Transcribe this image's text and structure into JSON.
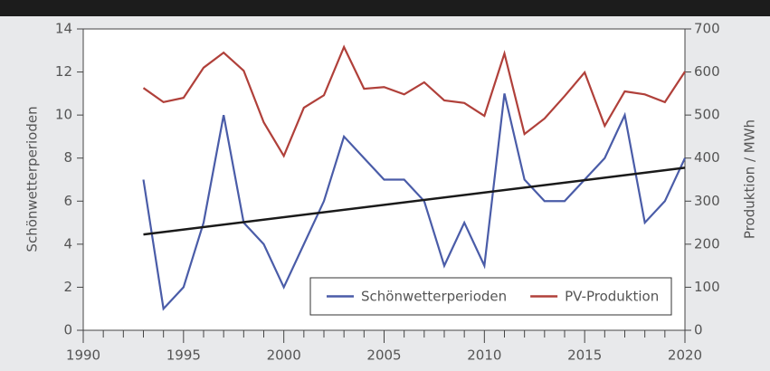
{
  "chart_data": {
    "type": "line",
    "x": [
      1993,
      1994,
      1995,
      1996,
      1997,
      1998,
      1999,
      2000,
      2001,
      2002,
      2003,
      2004,
      2005,
      2006,
      2007,
      2008,
      2009,
      2010,
      2011,
      2012,
      2013,
      2014,
      2015,
      2016,
      2017,
      2018,
      2019,
      2020
    ],
    "series": [
      {
        "name": "Schönwetterperioden",
        "color": "#4a5ca8",
        "values": [
          7,
          1,
          2,
          5,
          10,
          5,
          4,
          2,
          4,
          6,
          9,
          8,
          7,
          7,
          6,
          3,
          5,
          3,
          11,
          7,
          6,
          6,
          7,
          8,
          10,
          5,
          6,
          8
        ]
      },
      {
        "name": "PV-Produktion",
        "color": "#b0403a",
        "axis": "y2",
        "values": [
          563,
          530,
          540,
          610,
          645,
          603,
          483,
          405,
          517,
          546,
          658,
          561,
          565,
          548,
          576,
          534,
          528,
          498,
          643,
          456,
          492,
          544,
          599,
          475,
          555,
          548,
          530,
          601
        ]
      }
    ],
    "trend": {
      "x": [
        1993,
        2020
      ],
      "values": [
        4.45,
        7.55
      ],
      "color": "#1a1a1a"
    },
    "ylabel": "Schönwetterperioden",
    "y2label": "Produktion / MWh",
    "xlim": [
      1990,
      2020
    ],
    "xticks": [
      1990,
      1995,
      2000,
      2005,
      2010,
      2015,
      2020
    ],
    "xminorticks": [
      1991,
      1992,
      1993,
      1994,
      1996,
      1997,
      1998,
      1999,
      2001,
      2002,
      2003,
      2004,
      2006,
      2007,
      2008,
      2009,
      2011,
      2012,
      2013,
      2014,
      2016,
      2017,
      2018,
      2019
    ],
    "ylim": [
      0,
      14
    ],
    "yticks": [
      0,
      2,
      4,
      6,
      8,
      10,
      12,
      14
    ],
    "y2lim": [
      0,
      700
    ],
    "y2ticks": [
      0,
      100,
      200,
      300,
      400,
      500,
      600,
      700
    ],
    "legend": "lower right"
  }
}
